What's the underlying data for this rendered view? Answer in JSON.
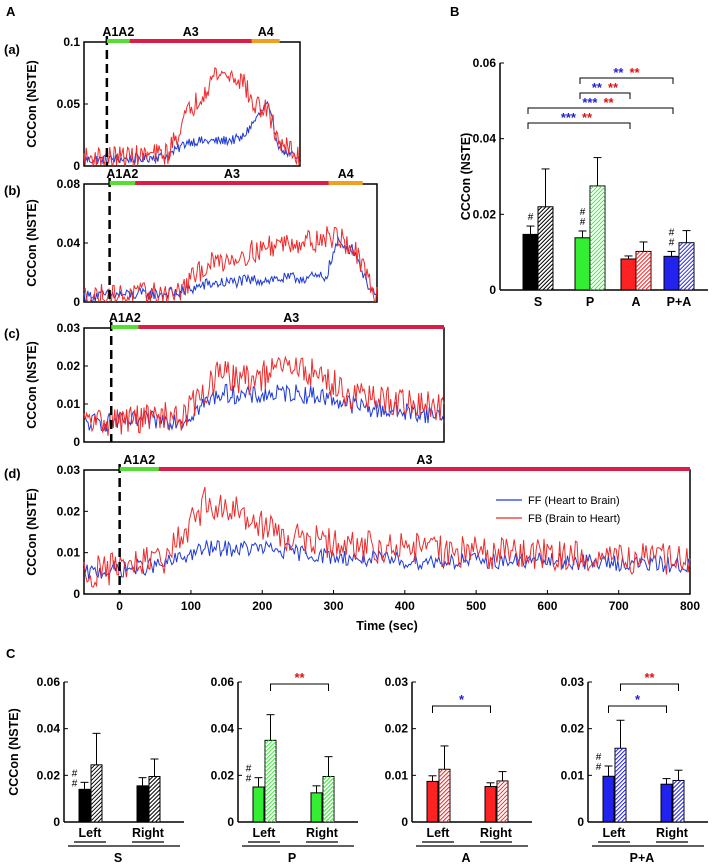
{
  "figure": {
    "panel_labels": [
      "A",
      "B",
      "C"
    ],
    "row_labels": [
      "(a)",
      "(b)",
      "(c)",
      "(d)"
    ],
    "colors": {
      "ff": "#1f3bd6",
      "fb": "#ee2b2b",
      "phase_green": "#55dd33",
      "phase_red": "#dd1d47",
      "phase_orange": "#f0a020",
      "S": "#000000",
      "P": "#33ee33",
      "A": "#ff2222",
      "PA": "#2222ee",
      "sig_blue": "#2222cc",
      "sig_red": "#dd1111"
    }
  },
  "chart_data": [
    {
      "id": "a",
      "type": "line",
      "ylabel": "CCCon (NSTE)",
      "xlim": [
        -45,
        380
      ],
      "ylim": [
        0,
        0.1
      ],
      "yticks": [
        0,
        0.05,
        0.1
      ],
      "ytick_labels": [
        "0",
        "0.05",
        "0.1"
      ],
      "phases": [
        {
          "label": "A1A2",
          "start": 0,
          "end": 45,
          "color": "phase_green"
        },
        {
          "label": "A3",
          "start": 45,
          "end": 285,
          "color": "phase_red"
        },
        {
          "label": "A4",
          "start": 285,
          "end": 340,
          "color": "phase_orange"
        }
      ],
      "series": [
        {
          "name": "FF (Heart to Brain)",
          "key": "ff",
          "knots": [
            [
              -45,
              0.005
            ],
            [
              60,
              0.006
            ],
            [
              120,
              0.008
            ],
            [
              160,
              0.02
            ],
            [
              220,
              0.02
            ],
            [
              265,
              0.022
            ],
            [
              315,
              0.05
            ],
            [
              340,
              0.015
            ],
            [
              380,
              0.004
            ]
          ],
          "noise": 0.004
        },
        {
          "name": "FB (Brain to Heart)",
          "key": "fb",
          "knots": [
            [
              -45,
              0.006
            ],
            [
              60,
              0.008
            ],
            [
              120,
              0.01
            ],
            [
              155,
              0.04
            ],
            [
              190,
              0.06
            ],
            [
              215,
              0.075
            ],
            [
              250,
              0.072
            ],
            [
              270,
              0.068
            ],
            [
              285,
              0.05
            ],
            [
              315,
              0.045
            ],
            [
              340,
              0.02
            ],
            [
              380,
              0.005
            ]
          ],
          "noise": 0.009
        }
      ]
    },
    {
      "id": "b",
      "type": "line",
      "ylabel": "CCCon (NSTE)",
      "xlim": [
        -45,
        470
      ],
      "ylim": [
        0,
        0.08
      ],
      "yticks": [
        0,
        0.04,
        0.08
      ],
      "ytick_labels": [
        "0",
        "0.04",
        "0.08"
      ],
      "phases": [
        {
          "label": "A1A2",
          "start": 0,
          "end": 45,
          "color": "phase_green"
        },
        {
          "label": "A3",
          "start": 45,
          "end": 385,
          "color": "phase_red"
        },
        {
          "label": "A4",
          "start": 385,
          "end": 445,
          "color": "phase_orange"
        }
      ],
      "series": [
        {
          "name": "FF (Heart to Brain)",
          "key": "ff",
          "knots": [
            [
              -45,
              0.004
            ],
            [
              120,
              0.006
            ],
            [
              170,
              0.012
            ],
            [
              260,
              0.015
            ],
            [
              380,
              0.017
            ],
            [
              400,
              0.04
            ],
            [
              430,
              0.035
            ],
            [
              450,
              0.015
            ],
            [
              470,
              0.003
            ]
          ],
          "noise": 0.004
        },
        {
          "name": "FB (Brain to Heart)",
          "key": "fb",
          "knots": [
            [
              -45,
              0.004
            ],
            [
              120,
              0.006
            ],
            [
              170,
              0.025
            ],
            [
              250,
              0.034
            ],
            [
              300,
              0.04
            ],
            [
              360,
              0.042
            ],
            [
              400,
              0.045
            ],
            [
              430,
              0.035
            ],
            [
              460,
              0.01
            ],
            [
              470,
              0.004
            ]
          ],
          "noise": 0.008
        }
      ]
    },
    {
      "id": "c",
      "type": "line",
      "ylabel": "CCCon (NSTE)",
      "xlim": [
        -45,
        550
      ],
      "ylim": [
        0,
        0.03
      ],
      "yticks": [
        0,
        0.01,
        0.02,
        0.03
      ],
      "ytick_labels": [
        "0",
        "0.01",
        "0.02",
        "0.03"
      ],
      "phases": [
        {
          "label": "A1A2",
          "start": 0,
          "end": 45,
          "color": "phase_green"
        },
        {
          "label": "A3",
          "start": 45,
          "end": 550,
          "color": "phase_red"
        }
      ],
      "series": [
        {
          "name": "FF (Heart to Brain)",
          "key": "ff",
          "knots": [
            [
              -45,
              0.005
            ],
            [
              120,
              0.006
            ],
            [
              180,
              0.013
            ],
            [
              230,
              0.012
            ],
            [
              300,
              0.013
            ],
            [
              350,
              0.012
            ],
            [
              420,
              0.009
            ],
            [
              550,
              0.007
            ]
          ],
          "noise": 0.0025
        },
        {
          "name": "FB (Brain to Heart)",
          "key": "fb",
          "knots": [
            [
              -45,
              0.005
            ],
            [
              120,
              0.007
            ],
            [
              180,
              0.018
            ],
            [
              230,
              0.016
            ],
            [
              290,
              0.02
            ],
            [
              340,
              0.018
            ],
            [
              400,
              0.012
            ],
            [
              550,
              0.009
            ]
          ],
          "noise": 0.004
        }
      ]
    },
    {
      "id": "d",
      "type": "line",
      "ylabel": "CCCon (NSTE)",
      "xlabel": "Time (sec)",
      "xlim": [
        -50,
        800
      ],
      "xticks": [
        0,
        100,
        200,
        300,
        400,
        500,
        600,
        700,
        800
      ],
      "ylim": [
        0,
        0.03
      ],
      "yticks": [
        0,
        0.01,
        0.02,
        0.03
      ],
      "ytick_labels": [
        "0",
        "0.01",
        "0.02",
        "0.03"
      ],
      "phases": [
        {
          "label": "A1A2",
          "start": 0,
          "end": 55,
          "color": "phase_green"
        },
        {
          "label": "A3",
          "start": 55,
          "end": 800,
          "color": "phase_red"
        }
      ],
      "series": [
        {
          "name": "FF (Heart to Brain)",
          "key": "ff",
          "knots": [
            [
              -50,
              0.005
            ],
            [
              60,
              0.007
            ],
            [
              120,
              0.011
            ],
            [
              200,
              0.011
            ],
            [
              300,
              0.009
            ],
            [
              400,
              0.008
            ],
            [
              600,
              0.008
            ],
            [
              800,
              0.007
            ]
          ],
          "noise": 0.002
        },
        {
          "name": "FB (Brain to Heart)",
          "key": "fb",
          "knots": [
            [
              -50,
              0.005
            ],
            [
              60,
              0.008
            ],
            [
              120,
              0.022
            ],
            [
              170,
              0.02
            ],
            [
              230,
              0.014
            ],
            [
              300,
              0.012
            ],
            [
              500,
              0.01
            ],
            [
              800,
              0.008
            ]
          ],
          "noise": 0.004
        }
      ],
      "legend": [
        "FF (Heart to Brain)",
        "FB (Brain to Heart)"
      ]
    },
    {
      "id": "B",
      "type": "bar",
      "ylabel": "CCCon (NSTE)",
      "ylim": [
        0,
        0.06
      ],
      "yticks": [
        0,
        0.02,
        0.04,
        0.06
      ],
      "ytick_labels": [
        "0",
        "0.02",
        "0.04",
        "0.06"
      ],
      "categories": [
        "S",
        "P",
        "A",
        "P+A"
      ],
      "color_keys": [
        "S",
        "P",
        "A",
        "PA"
      ],
      "series": [
        {
          "name": "FF",
          "values": [
            0.0147,
            0.0138,
            0.0082,
            0.0089
          ],
          "errors": [
            0.0022,
            0.0018,
            0.0008,
            0.0013
          ]
        },
        {
          "name": "FB",
          "values": [
            0.022,
            0.0275,
            0.0102,
            0.0125
          ],
          "errors": [
            0.01,
            0.0075,
            0.0025,
            0.0032
          ]
        }
      ],
      "hash_marks": [
        {
          "category": "S",
          "text": "#"
        },
        {
          "category": "P",
          "text": "# #"
        },
        {
          "category": "P+A",
          "text": "# #"
        }
      ],
      "brackets": [
        {
          "from": "P",
          "to": "P+A",
          "blue": "**",
          "red": "**"
        },
        {
          "from": "P",
          "to": "A",
          "blue": "**",
          "red": "**"
        },
        {
          "from": "S",
          "to": "P+A",
          "blue": "***",
          "red": "**"
        },
        {
          "from": "S",
          "to": "A",
          "blue": "***",
          "red": "**"
        }
      ]
    },
    {
      "id": "C-S",
      "type": "bar",
      "group_label": "S",
      "ylabel": "CCCon (NSTE)",
      "ylim": [
        0,
        0.06
      ],
      "yticks": [
        0,
        0.02,
        0.04,
        0.06
      ],
      "ytick_labels": [
        "0",
        "0.02",
        "0.04",
        "0.06"
      ],
      "categories": [
        "Left",
        "Right"
      ],
      "color_key": "S",
      "series": [
        {
          "name": "FF",
          "values": [
            0.014,
            0.0155
          ],
          "errors": [
            0.003,
            0.0035
          ]
        },
        {
          "name": "FB",
          "values": [
            0.0245,
            0.0195
          ],
          "errors": [
            0.0135,
            0.0075
          ]
        }
      ],
      "hash_marks": [
        {
          "category": "Left",
          "text": "# #"
        }
      ],
      "brackets": []
    },
    {
      "id": "C-P",
      "type": "bar",
      "group_label": "P",
      "ylim": [
        0,
        0.06
      ],
      "yticks": [
        0,
        0.02,
        0.04,
        0.06
      ],
      "ytick_labels": [
        "0",
        "0.02",
        "0.04",
        "0.06"
      ],
      "categories": [
        "Left",
        "Right"
      ],
      "color_key": "P",
      "series": [
        {
          "name": "FF",
          "values": [
            0.015,
            0.0125
          ],
          "errors": [
            0.004,
            0.003
          ]
        },
        {
          "name": "FB",
          "values": [
            0.035,
            0.0195
          ],
          "errors": [
            0.011,
            0.0085
          ]
        }
      ],
      "hash_marks": [
        {
          "category": "Left",
          "text": "# #"
        }
      ],
      "brackets": [
        {
          "between": "FB",
          "stars": [
            {
              "text": "**",
              "color": "sig_red"
            }
          ]
        }
      ]
    },
    {
      "id": "C-A",
      "type": "bar",
      "group_label": "A",
      "ylim": [
        0,
        0.03
      ],
      "yticks": [
        0,
        0.01,
        0.02,
        0.03
      ],
      "ytick_labels": [
        "0",
        "0.01",
        "0.02",
        "0.03"
      ],
      "categories": [
        "Left",
        "Right"
      ],
      "color_key": "A",
      "series": [
        {
          "name": "FF",
          "values": [
            0.0087,
            0.0076
          ],
          "errors": [
            0.0012,
            0.0008
          ]
        },
        {
          "name": "FB",
          "values": [
            0.0113,
            0.0088
          ],
          "errors": [
            0.005,
            0.002
          ]
        }
      ],
      "hash_marks": [],
      "brackets": [
        {
          "between": "FF",
          "stars": [
            {
              "text": "*",
              "color": "sig_blue"
            }
          ]
        }
      ]
    },
    {
      "id": "C-PA",
      "type": "bar",
      "group_label": "P+A",
      "ylim": [
        0,
        0.03
      ],
      "yticks": [
        0,
        0.01,
        0.02,
        0.03
      ],
      "ytick_labels": [
        "0",
        "0.01",
        "0.02",
        "0.03"
      ],
      "categories": [
        "Left",
        "Right"
      ],
      "color_key": "PA",
      "series": [
        {
          "name": "FF",
          "values": [
            0.0098,
            0.0081
          ],
          "errors": [
            0.0022,
            0.0012
          ]
        },
        {
          "name": "FB",
          "values": [
            0.0158,
            0.0089
          ],
          "errors": [
            0.006,
            0.0022
          ]
        }
      ],
      "hash_marks": [
        {
          "category": "Left",
          "text": "# #"
        }
      ],
      "brackets": [
        {
          "between": "FF",
          "stars": [
            {
              "text": "*",
              "color": "sig_blue"
            }
          ]
        },
        {
          "between": "FB",
          "stars": [
            {
              "text": "**",
              "color": "sig_red"
            }
          ]
        }
      ]
    }
  ]
}
